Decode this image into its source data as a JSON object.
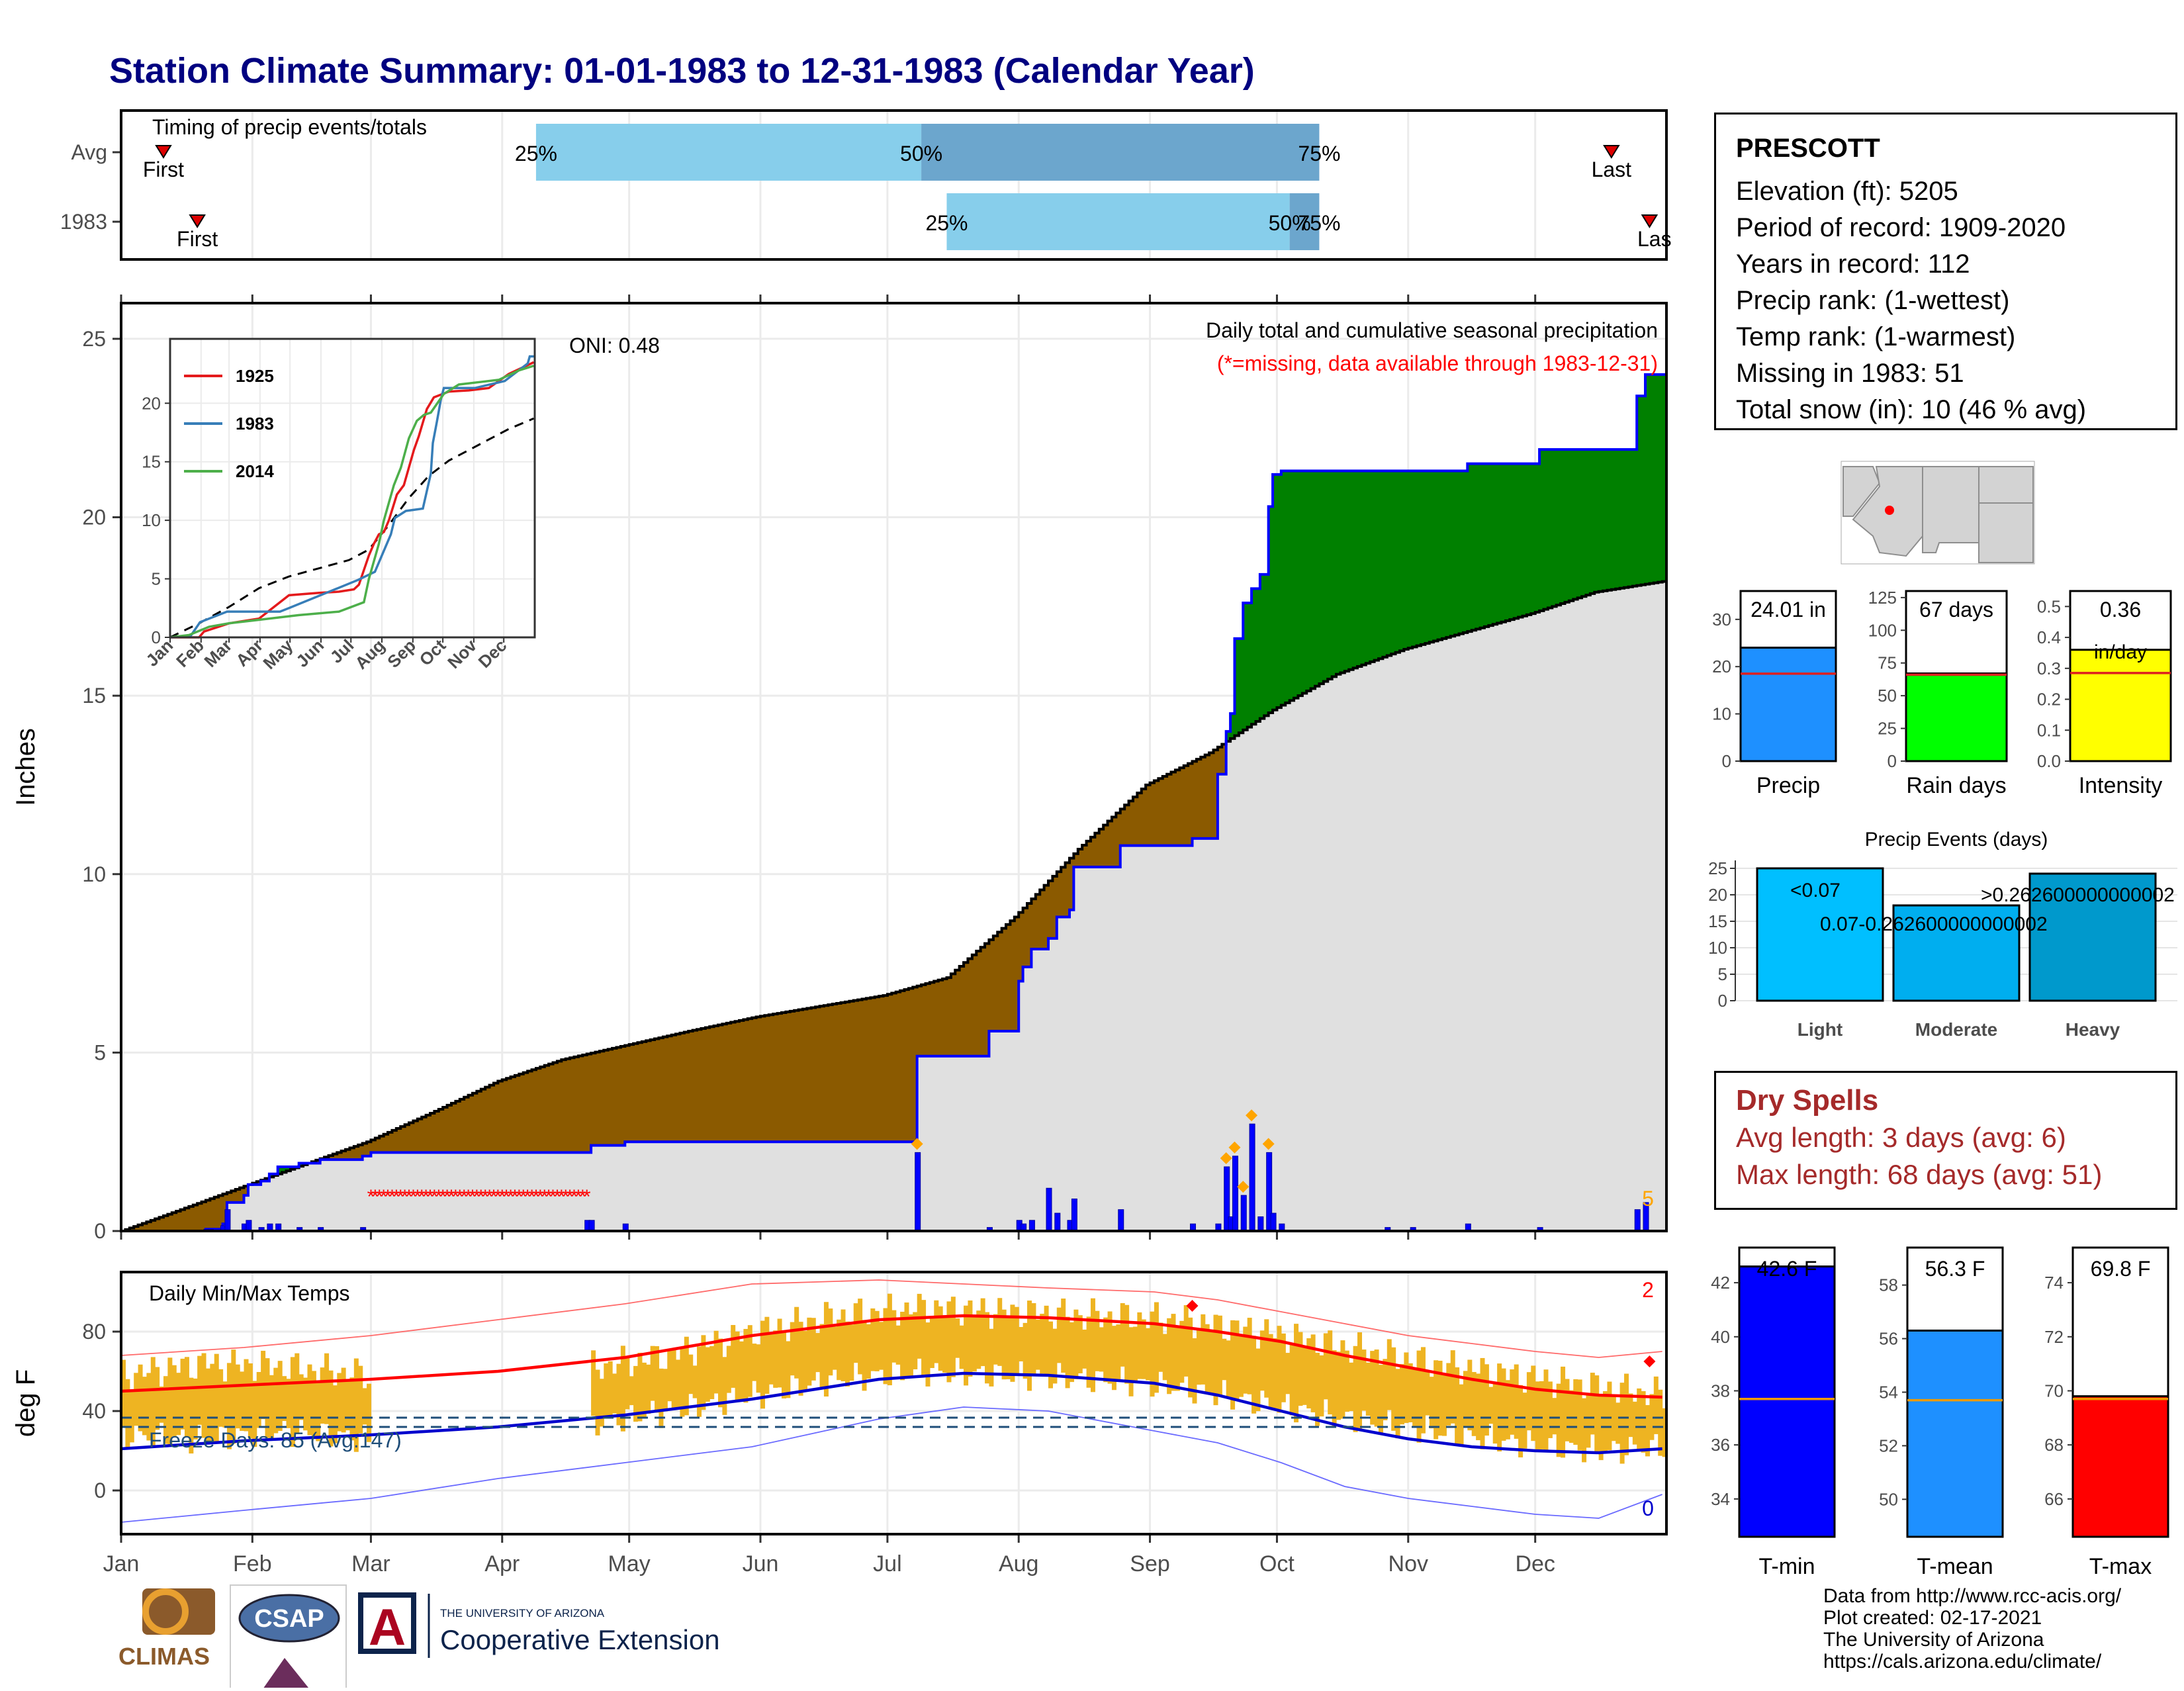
{
  "title": "Station Climate Summary: 01-01-1983 to 12-31-1983 (Calendar Year)",
  "station": {
    "name": "PRESCOTT",
    "elevation": "Elevation (ft): 5205",
    "period": "Period of record: 1909-2020",
    "years": "Years in record: 112",
    "precip_rank": "Precip rank:  (1-wettest)",
    "temp_rank": "Temp rank:  (1-warmest)",
    "missing": "Missing in 1983: 51",
    "snow": "Total snow (in): 10 (46 % avg)"
  },
  "months": [
    "Jan",
    "Feb",
    "Mar",
    "Apr",
    "May",
    "Jun",
    "Jul",
    "Aug",
    "Sep",
    "Oct",
    "Nov",
    "Dec"
  ],
  "colors": {
    "title": "#000080",
    "brown": "#8B5A00",
    "green": "#008000",
    "gray_fill": "#E0E0E0",
    "blue_line": "#0000FF",
    "light_blue": "#87CEEB",
    "mid_blue": "#6CA6CD",
    "orange": "#FFA500",
    "tmax_line": "#FF0000",
    "tmin_line": "#0000CD",
    "bar_temp": "#EEB422",
    "dry_red": "#A52A2A"
  },
  "timing": {
    "label": "Timing of precip events/totals",
    "row_labels": [
      "Avg",
      "1983"
    ],
    "first_label": "First",
    "last_label": "Last",
    "last_label_clipped": "Las",
    "avg": {
      "first": 11,
      "p25": 99,
      "p50": 190,
      "p75": 284,
      "last": 353
    },
    "year": {
      "first": 19,
      "p25": 196,
      "p50": 277,
      "p75": 284,
      "last": 362
    },
    "pct_labels": [
      "25%",
      "50%",
      "75%"
    ]
  },
  "precip_panel": {
    "subtitle": "Daily total and cumulative seasonal precipitation",
    "missing_note": "(*=missing, data available through 1983-12-31)",
    "oni": "ONI: 0.48",
    "ylabel": "Inches",
    "y_ticks": [
      0,
      5,
      10,
      15,
      20,
      25
    ],
    "ylim": [
      0,
      26
    ],
    "missing_range": [
      60,
      111
    ],
    "corner_count": "5",
    "chart_data": {
      "type": "area",
      "avg_cumulative_x": [
        1,
        15,
        31,
        45,
        59,
        74,
        90,
        105,
        120,
        135,
        151,
        166,
        181,
        196,
        212,
        227,
        243,
        258,
        273,
        288,
        304,
        319,
        334,
        349,
        365
      ],
      "avg_cumulative_y": [
        0,
        0.6,
        1.3,
        1.9,
        2.5,
        3.3,
        4.2,
        4.8,
        5.2,
        5.6,
        6.0,
        6.3,
        6.6,
        7.1,
        8.8,
        10.7,
        12.5,
        13.4,
        14.6,
        15.6,
        16.3,
        16.8,
        17.3,
        17.9,
        18.2
      ],
      "year_cumulative_x": [
        1,
        21,
        25,
        26,
        30,
        31,
        34,
        36,
        38,
        43,
        48,
        58,
        60,
        111,
        112,
        119,
        120,
        188,
        189,
        205,
        206,
        212,
        213,
        214,
        216,
        220,
        222,
        225,
        226,
        236,
        237,
        253,
        254,
        258,
        260,
        262,
        263,
        264,
        266,
        268,
        270,
        272,
        273,
        275,
        300,
        306,
        319,
        336,
        359,
        361,
        365
      ],
      "year_cumulative_y": [
        0,
        0.05,
        0.2,
        0.8,
        1.0,
        1.3,
        1.4,
        1.6,
        1.8,
        1.9,
        2.0,
        2.1,
        2.2,
        2.2,
        2.4,
        2.4,
        2.5,
        2.5,
        4.9,
        4.9,
        5.6,
        5.6,
        7.0,
        7.4,
        7.9,
        8.2,
        8.8,
        9.0,
        10.2,
        10.2,
        10.8,
        10.8,
        11.0,
        11.0,
        12.8,
        14.0,
        14.5,
        16.6,
        17.6,
        18.0,
        18.4,
        20.3,
        21.2,
        21.3,
        21.3,
        21.3,
        21.5,
        21.9,
        23.4,
        24.0,
        24.0
      ],
      "daily_x": [
        21,
        22,
        25,
        26,
        30,
        31,
        34,
        36,
        38,
        43,
        48,
        58,
        111,
        112,
        120,
        189,
        206,
        213,
        214,
        216,
        220,
        222,
        225,
        226,
        237,
        254,
        260,
        262,
        263,
        264,
        266,
        268,
        270,
        272,
        273,
        275,
        300,
        306,
        319,
        336,
        359,
        361
      ],
      "daily_y": [
        0.05,
        0.05,
        0.15,
        0.6,
        0.2,
        0.3,
        0.1,
        0.2,
        0.2,
        0.1,
        0.1,
        0.1,
        0.3,
        0.3,
        0.2,
        2.2,
        0.1,
        0.3,
        0.2,
        0.3,
        1.2,
        0.5,
        0.3,
        0.9,
        0.6,
        0.2,
        0.2,
        1.8,
        0.4,
        2.1,
        1.0,
        3.0,
        0.4,
        2.2,
        0.5,
        0.2,
        0.1,
        0.1,
        0.2,
        0.1,
        0.6,
        0.8
      ],
      "daily_flagged_x": [
        189,
        262,
        264,
        266,
        268,
        272
      ]
    }
  },
  "inset": {
    "series": [
      {
        "name": "1925",
        "color": "#E41A1C",
        "x": [
          1,
          30,
          35,
          60,
          90,
          120,
          150,
          170,
          185,
          190,
          200,
          205,
          210,
          215,
          220,
          228,
          235,
          240,
          245,
          250,
          258,
          265,
          280,
          300,
          320,
          340,
          365
        ],
        "y": [
          0,
          0,
          0.5,
          1.2,
          1.6,
          3.6,
          3.8,
          3.9,
          4.1,
          4.5,
          7.0,
          8.0,
          8.8,
          9.0,
          10.0,
          12.2,
          13.0,
          14.5,
          16.0,
          17.2,
          19.5,
          20.5,
          21.0,
          21.1,
          21.3,
          22.5,
          23.5
        ]
      },
      {
        "name": "1983",
        "color": "#377EB8",
        "x": [
          1,
          21,
          31,
          58,
          111,
          120,
          189,
          206,
          213,
          222,
          226,
          237,
          254,
          262,
          264,
          268,
          272,
          275,
          306,
          336,
          359,
          361,
          365
        ],
        "y": [
          0,
          0.05,
          1.3,
          2.2,
          2.2,
          2.5,
          4.9,
          5.6,
          7.0,
          8.8,
          10.2,
          10.8,
          11.0,
          14.0,
          16.6,
          18.4,
          20.3,
          21.3,
          21.3,
          21.9,
          23.4,
          24.0,
          24.0
        ]
      },
      {
        "name": "2014",
        "color": "#4DAF4A",
        "x": [
          1,
          20,
          40,
          60,
          90,
          130,
          170,
          195,
          200,
          210,
          215,
          220,
          225,
          232,
          240,
          248,
          255,
          262,
          275,
          290,
          310,
          330,
          350,
          365
        ],
        "y": [
          0,
          0.2,
          0.9,
          1.2,
          1.5,
          1.9,
          2.2,
          3.0,
          5.0,
          8.0,
          10.0,
          11.5,
          13.0,
          14.5,
          17.0,
          18.5,
          19.0,
          19.2,
          20.8,
          21.6,
          21.8,
          22.0,
          22.8,
          23.2
        ]
      }
    ],
    "avg_dashed_x": [
      1,
      30,
      60,
      90,
      120,
      150,
      180,
      200,
      220,
      240,
      260,
      280,
      300,
      320,
      340,
      365
    ],
    "avg_dashed_y": [
      0,
      1.2,
      2.6,
      4.2,
      5.2,
      5.9,
      6.6,
      7.5,
      9.6,
      11.9,
      13.8,
      15.1,
      16.0,
      16.9,
      17.8,
      18.7
    ],
    "y_ticks": [
      0,
      5,
      10,
      15,
      20
    ],
    "ylim": [
      0,
      25.5
    ]
  },
  "temp_panel": {
    "label": "Daily Min/Max Temps",
    "ylabel": "deg F",
    "y_ticks": [
      0,
      40,
      80
    ],
    "ylim": [
      -22,
      110
    ],
    "freeze_label": "Freeze Days: 85 (Avg:147)",
    "freeze_temp": 32,
    "record_high_count": "2",
    "record_low_count": "0",
    "missing_range": [
      60,
      111
    ],
    "normal_max_x": [
      1,
      30,
      60,
      90,
      120,
      150,
      180,
      200,
      220,
      245,
      260,
      275,
      290,
      305,
      320,
      335,
      350,
      365
    ],
    "normal_max_y": [
      50,
      53,
      56,
      60,
      67,
      78,
      86,
      88,
      87,
      84,
      80,
      75,
      68,
      62,
      56,
      51,
      48,
      47
    ],
    "normal_min_x": [
      1,
      30,
      60,
      90,
      120,
      150,
      180,
      200,
      220,
      245,
      260,
      275,
      290,
      305,
      320,
      335,
      350,
      365
    ],
    "normal_min_y": [
      21,
      25,
      28,
      32,
      38,
      46,
      56,
      59,
      58,
      54,
      48,
      40,
      32,
      26,
      22,
      20,
      19,
      21
    ],
    "record_max_x": [
      1,
      30,
      60,
      90,
      120,
      150,
      180,
      200,
      220,
      245,
      260,
      275,
      290,
      305,
      320,
      335,
      350,
      365
    ],
    "record_max_y": [
      68,
      72,
      78,
      86,
      94,
      104,
      106,
      104,
      102,
      100,
      96,
      90,
      84,
      78,
      74,
      70,
      67,
      70
    ],
    "record_min_x": [
      1,
      30,
      60,
      90,
      120,
      150,
      180,
      200,
      220,
      245,
      260,
      275,
      290,
      305,
      320,
      335,
      350,
      365
    ],
    "record_min_y": [
      -16,
      -10,
      -4,
      6,
      14,
      22,
      36,
      42,
      40,
      30,
      24,
      14,
      2,
      -4,
      -8,
      -12,
      -14,
      -2
    ],
    "observed_max_x": [
      1,
      20,
      40,
      59,
      112,
      130,
      150,
      170,
      190,
      210,
      230,
      250,
      270,
      290,
      310,
      330,
      350,
      365
    ],
    "observed_max_y": [
      58,
      64,
      62,
      58,
      62,
      68,
      80,
      88,
      92,
      90,
      88,
      86,
      80,
      72,
      64,
      58,
      52,
      48
    ],
    "observed_min_x": [
      1,
      20,
      40,
      59,
      112,
      130,
      150,
      170,
      190,
      210,
      230,
      250,
      270,
      290,
      310,
      330,
      350,
      365
    ],
    "observed_min_y": [
      28,
      26,
      30,
      26,
      34,
      40,
      48,
      56,
      60,
      58,
      56,
      52,
      44,
      36,
      30,
      24,
      20,
      22
    ],
    "record_marks_x": [
      254,
      362
    ],
    "record_marks_y": [
      93,
      65
    ]
  },
  "summary_bars": {
    "precip": {
      "label": "Precip",
      "value_label": "24.01 in",
      "value": 24.01,
      "avg": 18.5,
      "ylim": [
        0,
        36
      ],
      "ticks": [
        0,
        10,
        20,
        30
      ],
      "color": "#1E90FF"
    },
    "rain_days": {
      "label": "Rain days",
      "value_label": "67 days",
      "value": 67,
      "avg": 66,
      "ylim": [
        0,
        130
      ],
      "ticks": [
        0,
        25,
        50,
        75,
        100,
        125
      ],
      "color": "#00FF00"
    },
    "intensity": {
      "label": "Intensity",
      "value_label": "0.36",
      "value_label2": "in/day",
      "value": 0.36,
      "avg": 0.285,
      "ylim": [
        0,
        0.55
      ],
      "ticks": [
        "0.0",
        "0.1",
        "0.2",
        "0.3",
        "0.4",
        "0.5"
      ],
      "color": "#FFFF00"
    }
  },
  "precip_events": {
    "title": "Precip Events (days)",
    "ticks": [
      0,
      5,
      10,
      15,
      20,
      25
    ],
    "ylim": [
      0,
      26.5
    ],
    "bars": [
      {
        "label": "Light",
        "value": 25,
        "text": "<0.07",
        "color": "#00BFFF"
      },
      {
        "label": "Moderate",
        "value": 18,
        "text": "0.07-0.262600000000002",
        "color": "#00AEEF"
      },
      {
        "label": "Heavy",
        "value": 24,
        "text": ">0.262600000000002",
        "color": "#0099CC"
      }
    ]
  },
  "dry_spells": {
    "title": "Dry Spells",
    "avg": "Avg length: 3 days (avg: 6)",
    "max": "Max length: 68 days (avg: 51)"
  },
  "temp_bars": {
    "tmin": {
      "label": "T-min",
      "value_label": "42.6 F",
      "value": 42.6,
      "avg": 37.7,
      "ylim": [
        32.6,
        43.3
      ],
      "ticks": [
        34,
        36,
        38,
        40,
        42
      ],
      "color": "#0000FF"
    },
    "tmean": {
      "label": "T-mean",
      "value_label": "56.3 F",
      "value": 56.3,
      "avg": 53.7,
      "ylim": [
        48.6,
        59.4
      ],
      "ticks": [
        50,
        52,
        54,
        56,
        58
      ],
      "color": "#1E90FF"
    },
    "tmax": {
      "label": "T-max",
      "value_label": "69.8 F",
      "value": 69.8,
      "avg": 69.7,
      "ylim": [
        64.6,
        75.3
      ],
      "ticks": [
        66,
        68,
        70,
        72,
        74
      ],
      "color": "#FF0000"
    }
  },
  "logos": {
    "climas": "CLIMAS",
    "csap": "CSAP",
    "csap_url": "http://cals.arizona.edu/climate",
    "ua_small": "THE UNIVERSITY OF ARIZONA",
    "ua_big": "Cooperative Extension",
    "ua_letter": "A"
  },
  "credits": {
    "line1": "Data from http://www.rcc-acis.org/",
    "line2": "Plot created: 02-17-2021",
    "line3": "The University of Arizona",
    "line4": "https://cals.arizona.edu/climate/"
  }
}
